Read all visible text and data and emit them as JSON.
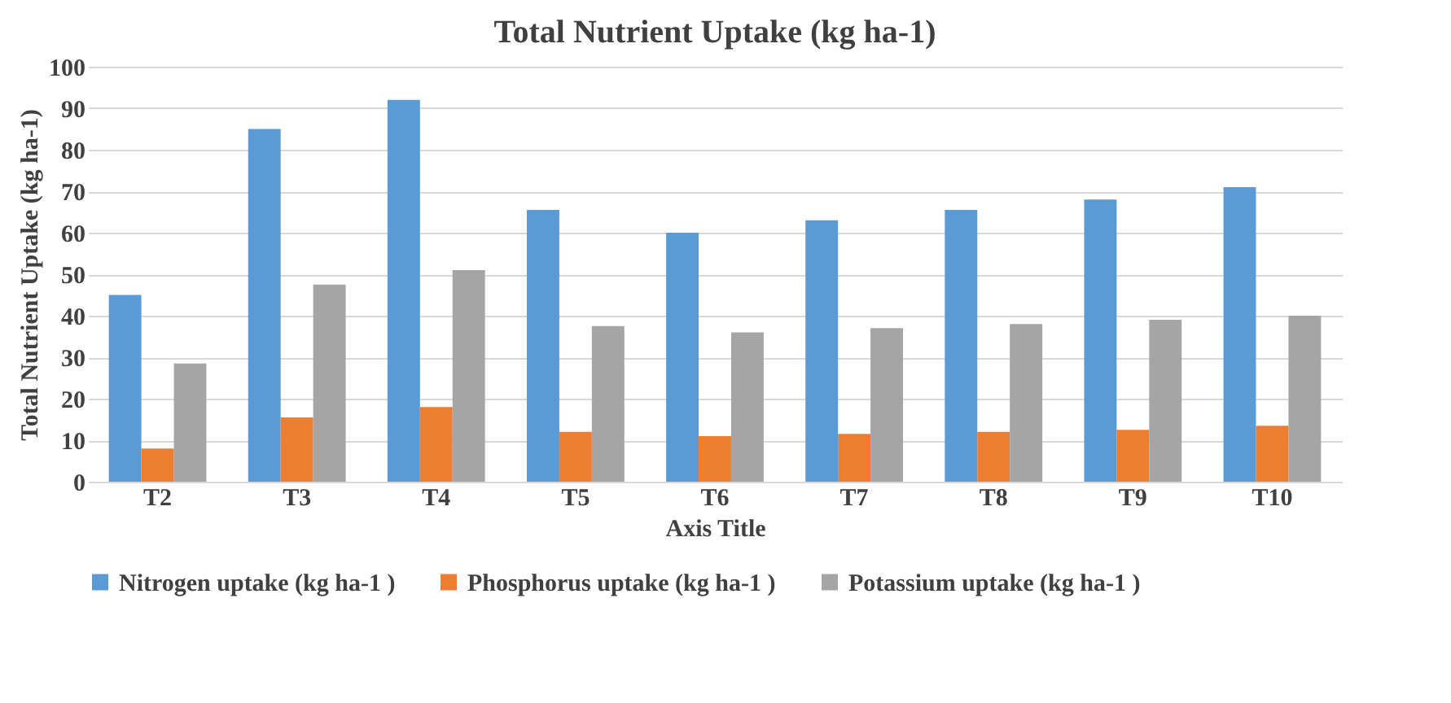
{
  "chart_data": {
    "type": "bar",
    "title": "Total Nutrient Uptake (kg ha-1)",
    "xlabel": "Axis Title",
    "ylabel": "Total Nutrient Uptake (kg ha-1)",
    "categories": [
      "T2",
      "T3",
      "T4",
      "T5",
      "T6",
      "T7",
      "T8",
      "T9",
      "T10"
    ],
    "series": [
      {
        "name": "Nitrogen uptake (kg ha-1 )",
        "color": "#5b9bd5",
        "values": [
          45,
          85,
          92,
          65.5,
          60,
          63,
          65.5,
          68,
          71
        ]
      },
      {
        "name": "Phosphorus uptake (kg ha-1 )",
        "color": "#ed7d31",
        "values": [
          8,
          15.5,
          18,
          12,
          11,
          11.5,
          12,
          12.5,
          13.5
        ]
      },
      {
        "name": "Potassium uptake (kg ha-1 )",
        "color": "#a5a5a5",
        "values": [
          28.5,
          47.5,
          51,
          37.5,
          36,
          37,
          38,
          39,
          40
        ]
      }
    ],
    "ylim": [
      0,
      100
    ],
    "yticks": [
      0,
      10,
      20,
      30,
      40,
      50,
      60,
      70,
      80,
      90,
      100
    ],
    "grid": "y",
    "legend": "bottom"
  }
}
